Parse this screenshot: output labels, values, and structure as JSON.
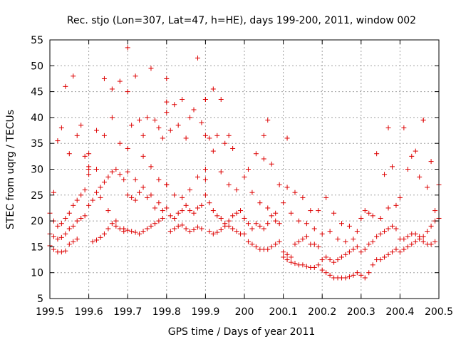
{
  "chart_data": {
    "type": "scatter",
    "title": "Rec. stjo (Lon=307, Lat=47, h=HE), days 199-200, 2011, window 002",
    "xlabel": "GPS time / Days of year 2011",
    "ylabel": "STEC from uqrg / TECUs",
    "xlim": [
      199.5,
      200.5
    ],
    "ylim": [
      5,
      55
    ],
    "xticks": [
      199.5,
      199.6,
      199.7,
      199.8,
      199.9,
      200,
      200.1,
      200.2,
      200.3,
      200.4,
      200.5
    ],
    "xtick_labels": [
      "199.5",
      "199.6",
      "199.7",
      "199.8",
      "199.9",
      "200",
      "200.1",
      "200.2",
      "200.3",
      "200.4",
      "200.5"
    ],
    "yticks": [
      5,
      10,
      15,
      20,
      25,
      30,
      35,
      40,
      45,
      50,
      55
    ],
    "ytick_labels": [
      "5",
      "10",
      "15",
      "20",
      "25",
      "30",
      "35",
      "40",
      "45",
      "50",
      "55"
    ],
    "grid": true,
    "marker": "plus",
    "color": "#dd0000",
    "series": [
      {
        "name": "STEC",
        "x": [
          199.5,
          199.51,
          199.52,
          199.53,
          199.54,
          199.55,
          199.56,
          199.57,
          199.5,
          199.51,
          199.52,
          199.53,
          199.54,
          199.55,
          199.56,
          199.57,
          199.58,
          199.59,
          199.5,
          199.51,
          199.52,
          199.53,
          199.54,
          199.55,
          199.56,
          199.57,
          199.58,
          199.59,
          199.51,
          199.53,
          199.55,
          199.57,
          199.59,
          199.6,
          199.52,
          199.54,
          199.56,
          199.58,
          199.6,
          199.61,
          199.62,
          199.63,
          199.64,
          199.65,
          199.66,
          199.67,
          199.68,
          199.69,
          199.6,
          199.61,
          199.62,
          199.63,
          199.64,
          199.65,
          199.66,
          199.67,
          199.68,
          199.69,
          199.6,
          199.62,
          199.64,
          199.66,
          199.68,
          199.7,
          199.6,
          199.62,
          199.64,
          199.66,
          199.68,
          199.7,
          199.63,
          199.65,
          199.67,
          199.69,
          199.7,
          199.71,
          199.72,
          199.73,
          199.74,
          199.75,
          199.76,
          199.77,
          199.78,
          199.79,
          199.7,
          199.71,
          199.72,
          199.73,
          199.74,
          199.75,
          199.76,
          199.77,
          199.78,
          199.79,
          199.7,
          199.72,
          199.74,
          199.76,
          199.78,
          199.8,
          199.71,
          199.73,
          199.75,
          199.77,
          199.79,
          199.8,
          199.7,
          199.72,
          199.74,
          199.76,
          199.78,
          199.8,
          199.81,
          199.82,
          199.83,
          199.84,
          199.85,
          199.86,
          199.87,
          199.88,
          199.89,
          199.8,
          199.81,
          199.82,
          199.83,
          199.84,
          199.85,
          199.86,
          199.87,
          199.88,
          199.89,
          199.8,
          199.82,
          199.84,
          199.86,
          199.88,
          199.9,
          199.81,
          199.83,
          199.85,
          199.87,
          199.89,
          199.9,
          199.8,
          199.82,
          199.84,
          199.86,
          199.88,
          199.9,
          199.91,
          199.92,
          199.93,
          199.94,
          199.95,
          199.96,
          199.97,
          199.98,
          199.99,
          199.9,
          199.91,
          199.92,
          199.93,
          199.94,
          199.95,
          199.96,
          199.97,
          199.98,
          199.99,
          199.9,
          199.92,
          199.94,
          199.96,
          199.98,
          199.91,
          199.93,
          199.95,
          199.97,
          199.9,
          199.92,
          199.94,
          199.96,
          200.0,
          200.01,
          200.02,
          200.03,
          200.04,
          200.05,
          200.06,
          200.07,
          200.08,
          200.09,
          200.0,
          200.01,
          200.02,
          200.03,
          200.04,
          200.05,
          200.06,
          200.07,
          200.08,
          200.09,
          200.0,
          200.02,
          200.04,
          200.06,
          200.08,
          200.01,
          200.03,
          200.05,
          200.07,
          200.09,
          200.05,
          200.06,
          200.1,
          200.11,
          200.12,
          200.13,
          200.14,
          200.15,
          200.16,
          200.17,
          200.18,
          200.19,
          200.1,
          200.11,
          200.12,
          200.13,
          200.14,
          200.15,
          200.16,
          200.17,
          200.18,
          200.19,
          200.1,
          200.12,
          200.14,
          200.16,
          200.18,
          200.11,
          200.13,
          200.15,
          200.17,
          200.19,
          200.11,
          200.2,
          200.21,
          200.22,
          200.23,
          200.24,
          200.25,
          200.26,
          200.27,
          200.28,
          200.29,
          200.2,
          200.21,
          200.22,
          200.23,
          200.24,
          200.25,
          200.26,
          200.27,
          200.28,
          200.29,
          200.2,
          200.22,
          200.24,
          200.26,
          200.28,
          200.21,
          200.23,
          200.25,
          200.27,
          200.29,
          200.3,
          200.31,
          200.32,
          200.33,
          200.34,
          200.35,
          200.36,
          200.37,
          200.38,
          200.39,
          200.3,
          200.31,
          200.32,
          200.33,
          200.34,
          200.35,
          200.36,
          200.37,
          200.38,
          200.39,
          200.31,
          200.33,
          200.35,
          200.37,
          200.39,
          200.3,
          200.32,
          200.34,
          200.36,
          200.38,
          200.37,
          200.4,
          200.41,
          200.42,
          200.43,
          200.44,
          200.45,
          200.46,
          200.47,
          200.48,
          200.49,
          200.4,
          200.41,
          200.42,
          200.43,
          200.44,
          200.45,
          200.46,
          200.47,
          200.48,
          200.49,
          200.4,
          200.42,
          200.44,
          200.46,
          200.48,
          200.5,
          200.41,
          200.43,
          200.45,
          200.47,
          200.49,
          200.5,
          200.46
        ],
        "y": [
          15.2,
          14.5,
          14.0,
          14.0,
          14.2,
          15.5,
          16.0,
          16.5,
          17.5,
          17.0,
          16.5,
          16.8,
          17.5,
          18.5,
          19.0,
          20.0,
          20.5,
          21.0,
          21.5,
          20.0,
          19.0,
          19.5,
          20.5,
          21.5,
          23.0,
          24.0,
          25.0,
          26.0,
          25.5,
          38.0,
          33.0,
          36.5,
          32.5,
          30.0,
          35.5,
          46.0,
          48.0,
          38.5,
          29.0,
          16.0,
          16.3,
          16.8,
          17.5,
          18.5,
          19.5,
          19.0,
          18.5,
          18.0,
          23.0,
          24.0,
          25.5,
          26.5,
          27.5,
          28.5,
          29.5,
          30.0,
          29.0,
          28.0,
          30.5,
          37.5,
          36.5,
          40.0,
          35.0,
          34.0,
          33.0,
          30.0,
          47.5,
          45.5,
          47.0,
          53.5,
          24.5,
          22.0,
          20.0,
          18.5,
          18.2,
          18.0,
          17.8,
          17.5,
          18.0,
          18.5,
          19.0,
          19.5,
          20.0,
          20.5,
          25.0,
          24.5,
          24.0,
          25.5,
          26.5,
          24.5,
          25.0,
          22.5,
          23.5,
          22.0,
          29.5,
          28.0,
          32.5,
          30.5,
          28.0,
          27.0,
          38.5,
          39.5,
          40.0,
          39.5,
          36.0,
          41.0,
          45.0,
          48.0,
          36.5,
          49.5,
          38.0,
          43.0,
          18.0,
          18.5,
          19.0,
          19.2,
          18.5,
          18.0,
          18.3,
          18.8,
          18.5,
          22.5,
          21.0,
          20.5,
          21.5,
          22.0,
          23.0,
          22.0,
          21.5,
          22.5,
          23.0,
          27.0,
          25.0,
          24.5,
          26.0,
          28.5,
          28.0,
          37.5,
          38.5,
          36.0,
          41.5,
          39.0,
          36.5,
          47.5,
          42.5,
          43.5,
          40.0,
          51.5,
          43.5,
          18.0,
          17.5,
          17.8,
          18.3,
          19.0,
          20.0,
          21.0,
          21.5,
          22.0,
          25.0,
          23.5,
          22.0,
          21.0,
          20.5,
          19.5,
          19.0,
          18.5,
          18.0,
          17.5,
          30.0,
          33.5,
          29.5,
          27.0,
          26.0,
          36.0,
          36.5,
          35.0,
          34.0,
          43.5,
          45.5,
          43.5,
          36.5,
          17.5,
          16.0,
          15.5,
          15.0,
          14.5,
          14.5,
          14.5,
          15.0,
          15.5,
          16.0,
          20.5,
          19.5,
          18.5,
          19.5,
          19.0,
          18.5,
          19.5,
          21.0,
          20.0,
          19.5,
          28.5,
          25.5,
          23.5,
          22.5,
          21.5,
          30.0,
          33.0,
          32.0,
          31.0,
          27.0,
          36.5,
          39.5,
          13.0,
          12.5,
          12.0,
          11.8,
          11.5,
          11.5,
          11.2,
          11.0,
          11.0,
          11.5,
          14.0,
          13.5,
          13.0,
          15.5,
          16.0,
          16.5,
          17.0,
          15.5,
          15.5,
          15.0,
          23.5,
          21.5,
          20.0,
          19.5,
          18.5,
          26.5,
          25.5,
          24.5,
          22.0,
          22.0,
          36.0,
          10.5,
          10.0,
          9.5,
          9.0,
          9.0,
          9.0,
          9.0,
          9.2,
          9.5,
          10.0,
          12.5,
          13.0,
          12.5,
          12.0,
          12.5,
          13.0,
          13.5,
          14.0,
          14.5,
          15.0,
          17.5,
          18.0,
          16.5,
          16.0,
          16.5,
          24.5,
          21.5,
          19.5,
          19.0,
          18.0,
          9.5,
          9.0,
          10.0,
          11.5,
          12.5,
          12.5,
          13.0,
          13.5,
          14.0,
          14.5,
          14.0,
          14.5,
          15.5,
          16.0,
          17.0,
          17.5,
          18.0,
          18.5,
          19.0,
          18.5,
          22.0,
          21.0,
          20.5,
          22.5,
          23.0,
          20.5,
          21.5,
          33.0,
          29.0,
          30.5,
          38.0,
          14.0,
          14.5,
          15.0,
          15.5,
          16.0,
          16.5,
          16.0,
          15.5,
          15.5,
          16.0,
          16.5,
          16.5,
          17.0,
          17.5,
          17.5,
          17.0,
          17.0,
          18.0,
          19.0,
          20.0,
          24.5,
          30.0,
          33.5,
          39.5,
          31.5,
          27.0,
          38.0,
          32.5,
          28.5,
          26.5,
          22.0,
          20.5,
          39.5
        ]
      }
    ]
  }
}
